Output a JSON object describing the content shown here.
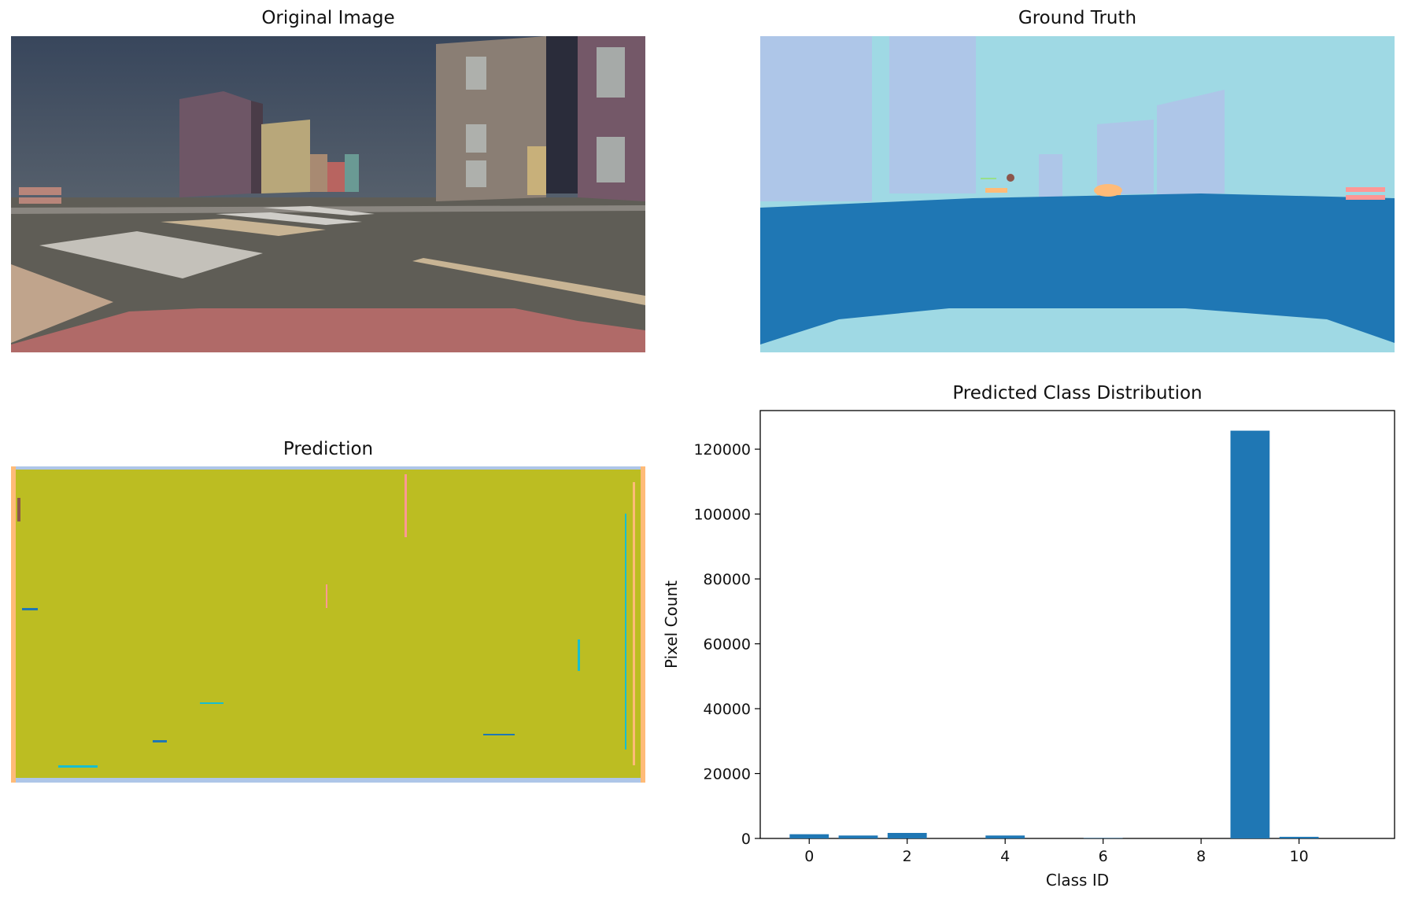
{
  "panels": {
    "original": {
      "title": "Original Image"
    },
    "ground_truth": {
      "title": "Ground Truth"
    },
    "prediction": {
      "title": "Prediction"
    }
  },
  "colors": {
    "sky": "#3c4a60",
    "road": "#5f5d56",
    "hood": "#b06a68",
    "gt_light": "#9fd9e4",
    "gt_building": "#aec6e8",
    "gt_road": "#1f77b4",
    "pred_main": "#bcbd22",
    "bar": "#1f77b4"
  },
  "chart_data": {
    "type": "bar",
    "title": "Predicted Class Distribution",
    "xlabel": "Class ID",
    "ylabel": "Pixel Count",
    "categories": [
      0,
      1,
      2,
      3,
      4,
      5,
      6,
      7,
      8,
      9,
      10,
      11
    ],
    "values": [
      1300,
      900,
      1700,
      0,
      900,
      0,
      100,
      0,
      0,
      125700,
      500,
      0
    ],
    "xlim": [
      -1.0,
      11.95
    ],
    "ylim": [
      0,
      131900
    ],
    "xticks": [
      0,
      2,
      4,
      6,
      8,
      10
    ],
    "yticks": [
      0,
      20000,
      40000,
      60000,
      80000,
      100000,
      120000
    ]
  }
}
